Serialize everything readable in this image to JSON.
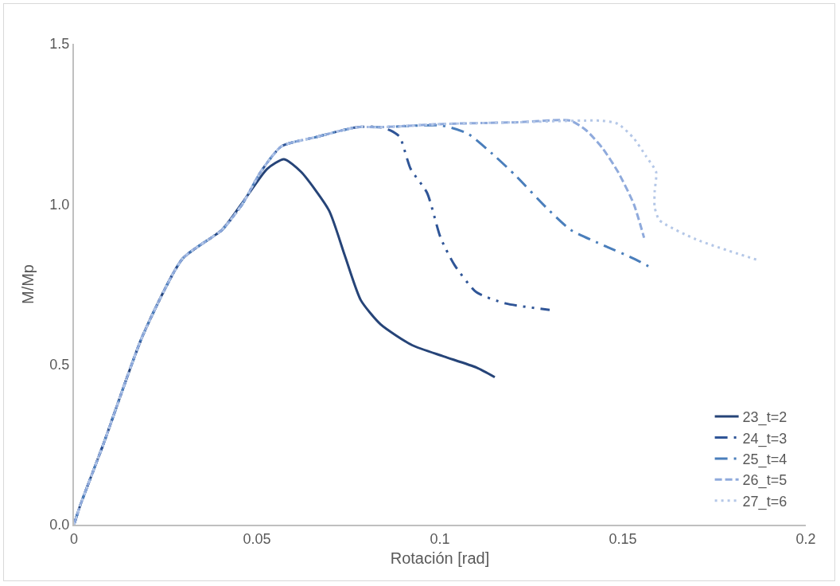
{
  "chart_data": {
    "type": "line",
    "xlabel": "Rotación [rad]",
    "ylabel": "M/Mp",
    "xlim": [
      0,
      0.2
    ],
    "ylim": [
      0,
      1.5
    ],
    "xticks": [
      0,
      0.05,
      0.1,
      0.15,
      0.2
    ],
    "yticks": [
      {
        "value": 0,
        "label": "0.0"
      },
      {
        "value": 0.5,
        "label": "0.5"
      },
      {
        "value": 1,
        "label": "1.0"
      },
      {
        "value": 1.5,
        "label": "1.5"
      }
    ],
    "grid": false,
    "legend": "bottom right",
    "marker": "none",
    "series": [
      {
        "name": "23_t=2",
        "color": "#264478",
        "line_style": "solid",
        "x": [
          0,
          0.0017,
          0.008,
          0.0188,
          0.0297,
          0.0405,
          0.047,
          0.0528,
          0.0574,
          0.0621,
          0.0697,
          0.074,
          0.0784,
          0.0838,
          0.0924,
          0.101,
          0.11,
          0.115
        ],
        "values": [
          0,
          0.06,
          0.25,
          0.59,
          0.83,
          0.92,
          1.02,
          1.11,
          1.14,
          1.1,
          0.98,
          0.84,
          0.7,
          0.625,
          0.56,
          0.525,
          0.49,
          0.46
        ]
      },
      {
        "name": "24_t=3",
        "color": "#2f5597",
        "line_style": "longdashdotdot",
        "x": [
          0,
          0.0017,
          0.008,
          0.0188,
          0.0297,
          0.0405,
          0.046,
          0.051,
          0.0567,
          0.0665,
          0.0773,
          0.0838,
          0.0864,
          0.089,
          0.092,
          0.0965,
          0.1002,
          0.104,
          0.11,
          0.118,
          0.13
        ],
        "values": [
          0,
          0.06,
          0.25,
          0.59,
          0.83,
          0.92,
          1.0,
          1.1,
          1.18,
          1.21,
          1.24,
          1.24,
          1.23,
          1.21,
          1.11,
          1.035,
          0.895,
          0.81,
          0.725,
          0.69,
          0.67
        ]
      },
      {
        "name": "25_t=4",
        "color": "#4a7ebb",
        "line_style": "longdashdot",
        "x": [
          0,
          0.0017,
          0.008,
          0.0188,
          0.0297,
          0.0405,
          0.046,
          0.051,
          0.0567,
          0.0665,
          0.0773,
          0.0838,
          0.1004,
          0.1076,
          0.115,
          0.1206,
          0.129,
          0.1357,
          0.144,
          0.153,
          0.158
        ],
        "values": [
          0,
          0.06,
          0.25,
          0.59,
          0.83,
          0.92,
          1.0,
          1.1,
          1.18,
          1.21,
          1.24,
          1.24,
          1.245,
          1.22,
          1.15,
          1.09,
          0.99,
          0.92,
          0.875,
          0.83,
          0.8
        ]
      },
      {
        "name": "26_t=5",
        "color": "#8faadc",
        "line_style": "dashed",
        "x": [
          0,
          0.0017,
          0.008,
          0.0188,
          0.0297,
          0.0405,
          0.046,
          0.051,
          0.0567,
          0.0665,
          0.0773,
          0.0838,
          0.101,
          0.1206,
          0.1357,
          0.14,
          0.1444,
          0.1487,
          0.153,
          0.1558
        ],
        "values": [
          0,
          0.06,
          0.25,
          0.59,
          0.83,
          0.92,
          1.0,
          1.1,
          1.18,
          1.21,
          1.24,
          1.24,
          1.25,
          1.255,
          1.26,
          1.23,
          1.175,
          1.1,
          1.0,
          0.895
        ]
      },
      {
        "name": "27_t=6",
        "color": "#b4c7e7",
        "line_style": "dotted",
        "x": [
          0,
          0.0017,
          0.008,
          0.0188,
          0.0297,
          0.0405,
          0.046,
          0.051,
          0.0567,
          0.0665,
          0.0773,
          0.0838,
          0.101,
          0.1206,
          0.1444,
          0.1487,
          0.153,
          0.1563,
          0.1591,
          0.1587,
          0.1587,
          0.16,
          0.17,
          0.187
        ],
        "values": [
          0,
          0.06,
          0.25,
          0.59,
          0.83,
          0.92,
          1.0,
          1.1,
          1.18,
          1.21,
          1.24,
          1.24,
          1.25,
          1.255,
          1.26,
          1.25,
          1.205,
          1.15,
          1.1,
          1.04,
          0.99,
          0.95,
          0.89,
          0.825
        ]
      }
    ]
  }
}
